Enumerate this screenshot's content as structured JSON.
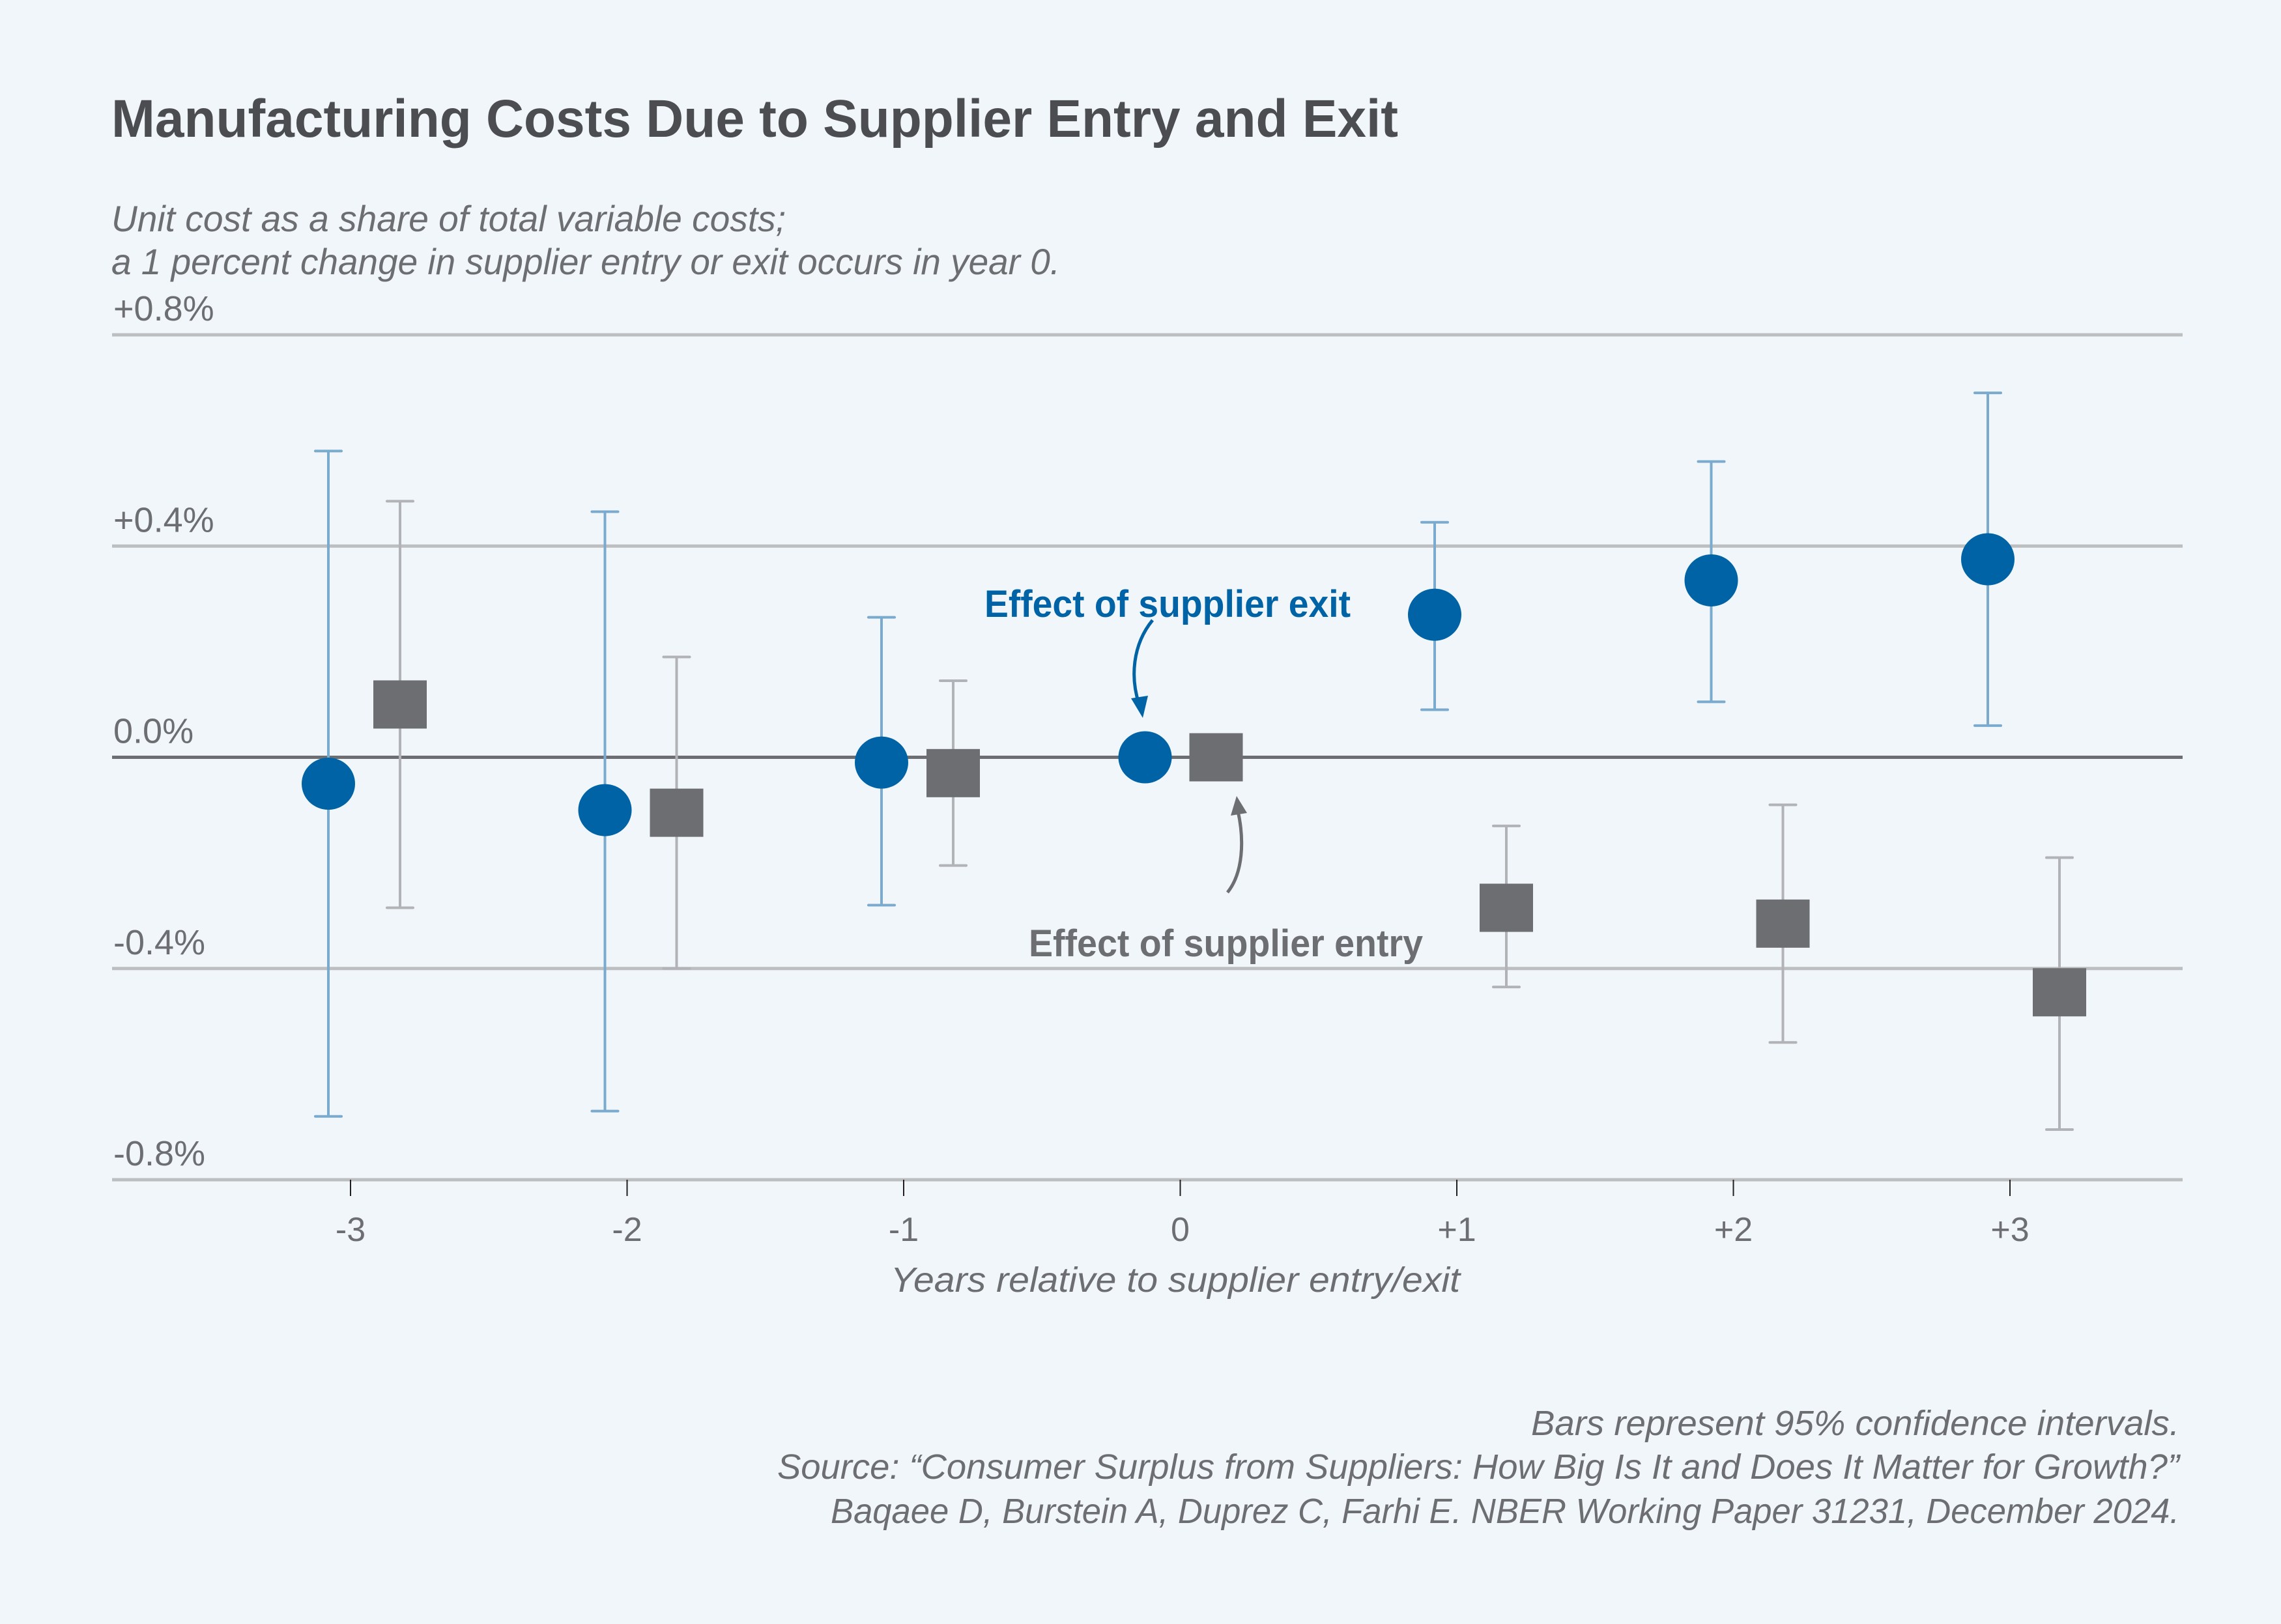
{
  "chart_data": {
    "type": "scatter",
    "title": "Manufacturing Costs Due to Supplier Entry and Exit",
    "subtitle": [
      "Unit cost as a share of total variable costs;",
      "a 1 percent change in supplier entry or exit occurs in year 0."
    ],
    "xlabel": "Years relative to supplier entry/exit",
    "ylabel": "",
    "x_categories": [
      -3,
      -2,
      -1,
      0,
      1,
      2,
      3
    ],
    "x_tick_labels": [
      "-3",
      "-2",
      "-1",
      "0",
      "+1",
      "+2",
      "+3"
    ],
    "ylim": [
      -0.8,
      0.8
    ],
    "y_ticks": [
      0.8,
      0.4,
      0.0,
      -0.4,
      -0.8
    ],
    "y_tick_labels": [
      "+0.8%",
      "+0.4%",
      "0.0%",
      "-0.4%",
      "-0.8%"
    ],
    "grid": true,
    "units": "percent",
    "series": [
      {
        "name": "Effect of supplier exit",
        "marker": "circle",
        "color": "#0063a6",
        "errorbar_color": "#7aaacd",
        "x": [
          -3,
          -2,
          -1,
          0,
          1,
          2,
          3
        ],
        "values": [
          -0.05,
          -0.1,
          -0.01,
          0.0,
          0.27,
          0.335,
          0.375
        ],
        "ci_low": [
          -0.68,
          -0.67,
          -0.28,
          null,
          0.09,
          0.105,
          0.06
        ],
        "ci_high": [
          0.58,
          0.465,
          0.265,
          null,
          0.445,
          0.56,
          0.69
        ]
      },
      {
        "name": "Effect of supplier entry",
        "marker": "square",
        "color": "#6d6e71",
        "errorbar_color": "#b1b3b6",
        "x": [
          -3,
          -2,
          -1,
          0,
          1,
          2,
          3
        ],
        "values": [
          0.1,
          -0.105,
          -0.03,
          0.0,
          -0.285,
          -0.315,
          -0.445
        ],
        "ci_low": [
          -0.285,
          -0.4,
          -0.205,
          null,
          -0.435,
          -0.54,
          -0.705
        ],
        "ci_high": [
          0.485,
          0.19,
          0.145,
          null,
          -0.13,
          -0.09,
          -0.19
        ]
      }
    ],
    "annotations": [
      {
        "text": "Effect of supplier exit",
        "series": 0,
        "color": "#0063a6"
      },
      {
        "text": "Effect of supplier entry",
        "series": 1,
        "color": "#6d6e71"
      }
    ],
    "notes": [
      "Bars represent 95% confidence intervals.",
      "Source: “Consumer Surplus from Suppliers: How Big Is It and Does It Matter for Growth?”",
      "Baqaee D, Burstein A, Duprez C, Farhi E. NBER Working Paper 31231, December 2024."
    ]
  },
  "colors": {
    "background": "#f1f6fa",
    "title": "#4b4d50",
    "text": "#6d6e71",
    "gridline": "#bcbec0",
    "zero_line": "#6d6e71",
    "exit": "#0063a6",
    "entry": "#6d6e71"
  }
}
